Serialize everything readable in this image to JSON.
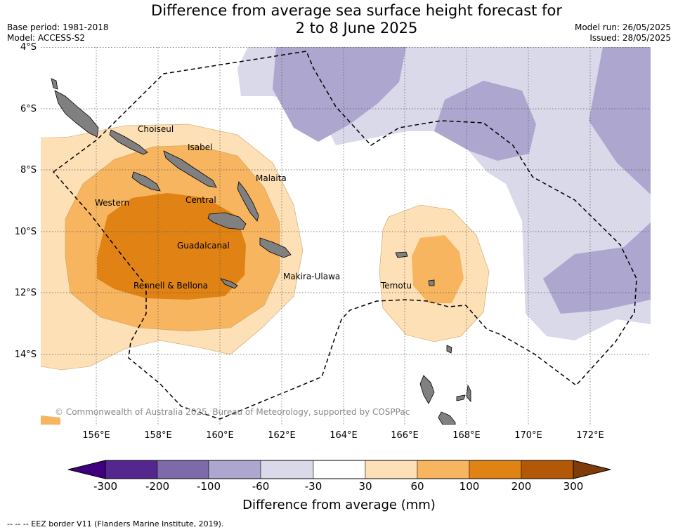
{
  "header": {
    "title_line1": "Difference from average sea surface height forecast for",
    "title_line2": "2 to 8 June 2025",
    "base_period": "Base period: 1981-2018",
    "model": "Model: ACCESS-S2",
    "model_run": "Model run: 26/05/2025",
    "issued": "Issued: 28/05/2025"
  },
  "map": {
    "lat_labels": [
      "4°S",
      "6°S",
      "8°S",
      "10°S",
      "12°S",
      "14°S"
    ],
    "lon_labels": [
      "156°E",
      "158°E",
      "160°E",
      "162°E",
      "164°E",
      "166°E",
      "168°E",
      "170°E",
      "172°E"
    ],
    "places": {
      "choiseul": "Choiseul",
      "isabel": "Isabel",
      "malaita": "Malaita",
      "western": "Western",
      "central": "Central",
      "guadalcanal": "Guadalcanal",
      "makira": "Makira-Ulawa",
      "rennell": "Rennell & Bellona",
      "temotu": "Temotu"
    },
    "copyright": "© Commonwealth of Australia 2025, Bureau of Meteorology, supported by COSPPac",
    "land_color": "#808080"
  },
  "colorbar": {
    "ticks": [
      "-300",
      "-200",
      "-100",
      "-60",
      "-30",
      "30",
      "60",
      "100",
      "200",
      "300"
    ],
    "colors": [
      "#3f007d",
      "#54278f",
      "#7d6ba9",
      "#ada6cf",
      "#d9d9ea",
      "#ffffff",
      "#fee0b6",
      "#f8b560",
      "#e08214",
      "#b35806",
      "#7f3b08"
    ],
    "label": "Difference from average (mm)"
  },
  "legend": {
    "eez": "--  --  -- EEZ border V11 (Flanders Marine Institute, 2019)."
  }
}
